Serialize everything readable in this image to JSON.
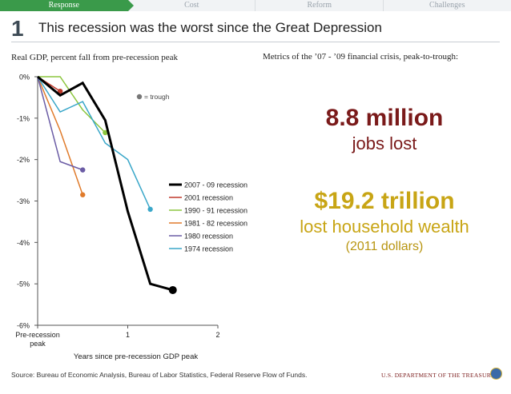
{
  "nav": {
    "tabs": [
      {
        "label": "Response",
        "active": true
      },
      {
        "label": "Cost",
        "active": false
      },
      {
        "label": "Reform",
        "active": false
      },
      {
        "label": "Challenges",
        "active": false
      }
    ]
  },
  "slide": {
    "number": "1",
    "headline": "This recession was the worst since the Great Depression"
  },
  "chart_title": "Real GDP, percent fall from pre-recession peak",
  "metrics": {
    "title": "Metrics of the ’07 - ’09 financial crisis, peak-to-trough:",
    "jobs_value": "8.8 million",
    "jobs_label": "jobs lost",
    "wealth_value": "$19.2 trillion",
    "wealth_label": "lost household wealth",
    "wealth_note": "(2011 dollars)"
  },
  "footer": {
    "source": "Source: Bureau of Economic Analysis, Bureau of Labor Statistics, Federal Reserve Flow of Funds.",
    "agency": "U.S. DEPARTMENT OF THE TREASURY"
  },
  "colors": {
    "accent_green": "#3a9a4a",
    "red_text": "#7a1a1a",
    "gold_text": "#c8a515"
  },
  "chart_data": {
    "type": "line",
    "xlabel": "Years since pre-recession GDP peak",
    "ylabel": "",
    "xlim": [
      0,
      2
    ],
    "ylim": [
      -6,
      0
    ],
    "x_ticks": [
      {
        "value": 0,
        "label": "Pre-recession\npeak"
      },
      {
        "value": 1,
        "label": "1"
      },
      {
        "value": 2,
        "label": "2"
      }
    ],
    "y_ticks": [
      {
        "value": 0,
        "label": "0%"
      },
      {
        "value": -1,
        "label": "-1%"
      },
      {
        "value": -2,
        "label": "-2%"
      },
      {
        "value": -3,
        "label": "-3%"
      },
      {
        "value": -4,
        "label": "-4%"
      },
      {
        "value": -5,
        "label": "-5%"
      },
      {
        "value": -6,
        "label": "-6%"
      }
    ],
    "trough_legend": "= trough",
    "grid": false,
    "legend_position": "right",
    "series": [
      {
        "name": "2007 - 09 recession",
        "color": "#000000",
        "width": 3,
        "points": [
          [
            0,
            0
          ],
          [
            0.25,
            -0.45
          ],
          [
            0.5,
            -0.15
          ],
          [
            0.75,
            -1.05
          ],
          [
            1.0,
            -3.25
          ],
          [
            1.25,
            -5.0
          ],
          [
            1.5,
            -5.15
          ]
        ]
      },
      {
        "name": "2001 recession",
        "color": "#c0392b",
        "width": 1.5,
        "points": [
          [
            0,
            0
          ],
          [
            0.25,
            -0.35
          ]
        ]
      },
      {
        "name": "1990 - 91 recession",
        "color": "#8cc63f",
        "width": 1.5,
        "points": [
          [
            0,
            0
          ],
          [
            0.25,
            0
          ],
          [
            0.5,
            -0.8
          ],
          [
            0.75,
            -1.35
          ]
        ]
      },
      {
        "name": "1981 - 82 recession",
        "color": "#e07b2b",
        "width": 1.5,
        "points": [
          [
            0,
            0
          ],
          [
            0.25,
            -1.3
          ],
          [
            0.5,
            -2.85
          ]
        ]
      },
      {
        "name": "1980 recession",
        "color": "#6b5ca5",
        "width": 1.5,
        "points": [
          [
            0,
            0
          ],
          [
            0.25,
            -2.05
          ],
          [
            0.5,
            -2.25
          ]
        ]
      },
      {
        "name": "1974 recession",
        "color": "#3aa7c9",
        "width": 1.5,
        "points": [
          [
            0,
            0
          ],
          [
            0.25,
            -0.85
          ],
          [
            0.5,
            -0.6
          ],
          [
            0.75,
            -1.6
          ],
          [
            1.0,
            -2.0
          ],
          [
            1.25,
            -3.2
          ]
        ]
      }
    ]
  }
}
